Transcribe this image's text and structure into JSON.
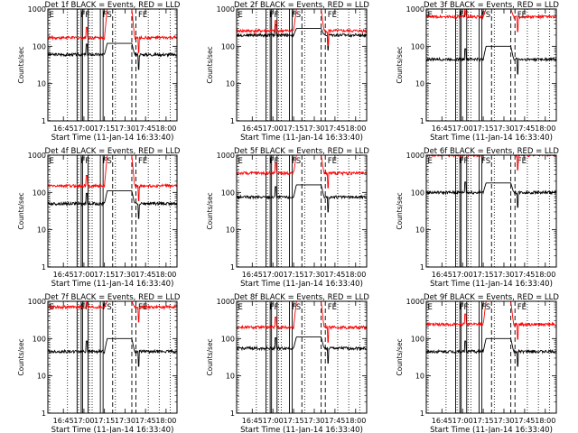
{
  "figure": {
    "xlabel": "Start Time (11-Jan-14 16:33:40)",
    "ylabel": "Counts/sec",
    "yticks": [
      {
        "label": "1",
        "value": 1
      },
      {
        "label": "10",
        "value": 10
      },
      {
        "label": "100",
        "value": 100
      },
      {
        "label": "1000",
        "value": 1000
      }
    ],
    "xticks": [
      "16:45",
      "17:00",
      "17:15",
      "17:30",
      "17:45",
      "18:00"
    ],
    "flag_labels": [
      "E",
      "FF",
      "FS",
      "FE"
    ],
    "colors": {
      "events": "#000000",
      "lld": "#ff0000",
      "axes": "#000000"
    }
  },
  "chart_data": [
    {
      "type": "line",
      "title": "Det 1f BLACK = Events, RED = LLD",
      "xlim": [
        "16:33:40",
        "18:08:00"
      ],
      "ylim": [
        1,
        1000
      ],
      "yscale": "log",
      "series": [
        {
          "color": "black",
          "level": 60,
          "peak": 120
        },
        {
          "color": "red",
          "level": 170,
          "peak": 1000
        }
      ]
    },
    {
      "type": "line",
      "title": "Det 2f BLACK = Events, RED = LLD",
      "xlim": [
        "16:33:40",
        "18:08:00"
      ],
      "ylim": [
        1,
        1000
      ],
      "yscale": "log",
      "series": [
        {
          "color": "black",
          "level": 200,
          "peak": 300
        },
        {
          "color": "red",
          "level": 260,
          "peak": 1000
        }
      ]
    },
    {
      "type": "line",
      "title": "Det 3f BLACK = Events, RED = LLD",
      "xlim": [
        "16:33:40",
        "18:08:00"
      ],
      "ylim": [
        1,
        1000
      ],
      "yscale": "log",
      "series": [
        {
          "color": "black",
          "level": 45,
          "peak": 100
        },
        {
          "color": "red",
          "level": 620,
          "peak": 1000
        }
      ]
    },
    {
      "type": "line",
      "title": "Det 4f BLACK = Events, RED = LLD",
      "xlim": [
        "16:33:40",
        "18:08:00"
      ],
      "ylim": [
        1,
        1000
      ],
      "yscale": "log",
      "series": [
        {
          "color": "black",
          "level": 50,
          "peak": 110
        },
        {
          "color": "red",
          "level": 150,
          "peak": 1000
        }
      ]
    },
    {
      "type": "line",
      "title": "Det 5f BLACK = Events, RED = LLD",
      "xlim": [
        "16:33:40",
        "18:08:00"
      ],
      "ylim": [
        1,
        1000
      ],
      "yscale": "log",
      "series": [
        {
          "color": "black",
          "level": 75,
          "peak": 160
        },
        {
          "color": "red",
          "level": 330,
          "peak": 1000
        }
      ]
    },
    {
      "type": "line",
      "title": "Det 6f BLACK = Events, RED = LLD",
      "xlim": [
        "16:33:40",
        "18:08:00"
      ],
      "ylim": [
        1,
        1000
      ],
      "yscale": "log",
      "series": [
        {
          "color": "black",
          "level": 100,
          "peak": 180
        },
        {
          "color": "red",
          "level": 1000,
          "peak": 1000
        }
      ]
    },
    {
      "type": "line",
      "title": "Det 7f BLACK = Events, RED = LLD",
      "xlim": [
        "16:33:40",
        "18:08:00"
      ],
      "ylim": [
        1,
        1000
      ],
      "yscale": "log",
      "series": [
        {
          "color": "black",
          "level": 45,
          "peak": 100
        },
        {
          "color": "red",
          "level": 700,
          "peak": 1000
        }
      ]
    },
    {
      "type": "line",
      "title": "Det 8f BLACK = Events, RED = LLD",
      "xlim": [
        "16:33:40",
        "18:08:00"
      ],
      "ylim": [
        1,
        1000
      ],
      "yscale": "log",
      "series": [
        {
          "color": "black",
          "level": 55,
          "peak": 110
        },
        {
          "color": "red",
          "level": 200,
          "peak": 1000
        }
      ]
    },
    {
      "type": "line",
      "title": "Det 9f BLACK = Events, RED = LLD",
      "xlim": [
        "16:33:40",
        "18:08:00"
      ],
      "ylim": [
        1,
        1000
      ],
      "yscale": "log",
      "series": [
        {
          "color": "black",
          "level": 45,
          "peak": 100
        },
        {
          "color": "red",
          "level": 240,
          "peak": 1000
        }
      ]
    }
  ]
}
